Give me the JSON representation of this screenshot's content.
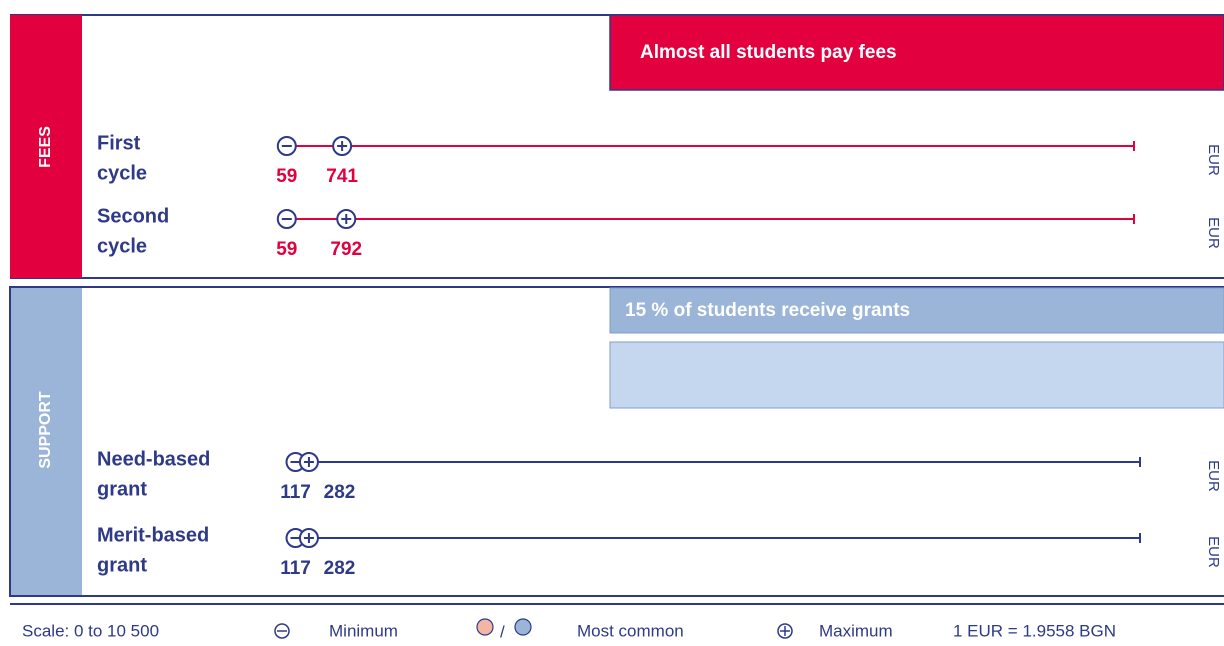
{
  "scale_range": [
    0,
    10500
  ],
  "sections": [
    {
      "label": "FEES",
      "banner": "Almost all students pay fees",
      "rows": [
        {
          "label": [
            "First",
            "cycle"
          ],
          "min": 59,
          "max": 741,
          "unit": "EUR"
        },
        {
          "label": [
            "Second",
            "cycle"
          ],
          "min": 59,
          "max": 792,
          "unit": "EUR"
        }
      ]
    },
    {
      "label": "SUPPORT",
      "banner": "15 % of students receive grants",
      "rows": [
        {
          "label": [
            "Need-based",
            "grant"
          ],
          "min": 117,
          "max": 282,
          "unit": "EUR"
        },
        {
          "label": [
            "Merit-based",
            "grant"
          ],
          "min": 117,
          "max": 282,
          "unit": "EUR"
        }
      ]
    }
  ],
  "legend": {
    "scale": "Scale: 0 to 10 500",
    "minimum": "Minimum",
    "separator": "/",
    "most_common": "Most common",
    "maximum": "Maximum",
    "rate": "1 EUR = 1.9558 BGN"
  }
}
